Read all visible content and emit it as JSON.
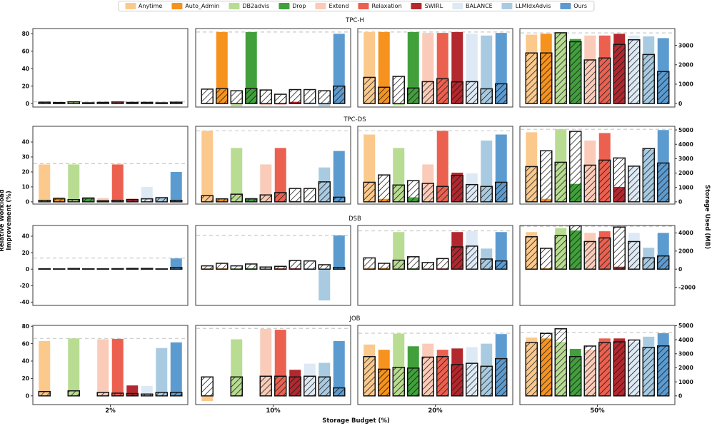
{
  "axes": {
    "left_label": "Relative Workload Improvement (%)",
    "right_label": "Storage Used (MB)",
    "bottom_label": "Storage Budget (%)"
  },
  "legend": {
    "items": [
      {
        "label": "Anytime",
        "color": "#FBC98C"
      },
      {
        "label": "Auto_Admin",
        "color": "#F6921E"
      },
      {
        "label": "DB2advis",
        "color": "#B8DC92"
      },
      {
        "label": "Drop",
        "color": "#41A03C"
      },
      {
        "label": "Extend",
        "color": "#FACBB8"
      },
      {
        "label": "Relaxation",
        "color": "#EC6050"
      },
      {
        "label": "SWIRL",
        "color": "#B2282E"
      },
      {
        "label": "BALANCE",
        "color": "#DDE9F4"
      },
      {
        "label": "LLMIdxAdvis",
        "color": "#A9CBE2"
      },
      {
        "label": "Ours",
        "color": "#5C9BD0"
      }
    ]
  },
  "chart_data": {
    "type": "bar",
    "title": "",
    "xlabel": "Storage Budget (%)",
    "ylabel_left": "Relative Workload Improvement (%)",
    "ylabel_right": "Storage Used (MB)",
    "budgets": [
      "2%",
      "10%",
      "20%",
      "50%"
    ],
    "series_names": [
      "Anytime",
      "Auto_Admin",
      "DB2advis",
      "Drop",
      "Extend",
      "Relaxation",
      "SWIRL",
      "BALANCE",
      "LLMIdxAdvis",
      "Ours"
    ],
    "note_bars": "each series has a solid bar = improvement % (left axis) and a black-hatched overlay bar = storage used MB (right axis); gray dashed line = reference improvement level",
    "rows": [
      {
        "title": "TPC-H",
        "left_ticks": [
          0,
          20,
          40,
          60,
          80
        ],
        "right_ticks": [
          0,
          1000,
          2000,
          3000
        ],
        "left_range": [
          -4,
          86
        ],
        "mb_per_pct": 45,
        "subplots": [
          {
            "budget": "2%",
            "dashed_pct": 2,
            "improvement_pct": [
              1.5,
              0.5,
              2.5,
              0.5,
              1.5,
              2,
              1.5,
              1.5,
              0.5,
              1.5
            ],
            "storage_mb": [
              70,
              50,
              90,
              40,
              60,
              80,
              60,
              60,
              40,
              70
            ]
          },
          {
            "budget": "10%",
            "dashed_pct": 82,
            "improvement_pct": [
              1,
              82,
              -3,
              82,
              -2,
              -1,
              2,
              2,
              -3,
              80
            ],
            "storage_mb": [
              745,
              770,
              660,
              780,
              700,
              480,
              720,
              720,
              660,
              900
            ]
          },
          {
            "budget": "20%",
            "dashed_pct": 82,
            "improvement_pct": [
              82,
              82,
              -2,
              82,
              81,
              81,
              82,
              80,
              78,
              81
            ],
            "storage_mb": [
              1350,
              840,
              1400,
              800,
              1130,
              1280,
              1120,
              1130,
              760,
              1020
            ]
          },
          {
            "budget": "50%",
            "dashed_pct": 81,
            "improvement_pct": [
              79,
              80,
              82,
              74,
              78,
              78,
              80,
              78,
              77,
              75
            ],
            "storage_mb": [
              2610,
              2610,
              3650,
              3190,
              2250,
              2350,
              3050,
              3290,
              2530,
              1650
            ]
          }
        ]
      },
      {
        "title": "TPC-DS",
        "left_ticks": [
          0,
          10,
          20,
          30,
          40
        ],
        "right_ticks": [
          0,
          1000,
          2000,
          3000,
          4000,
          5000
        ],
        "left_range": [
          -1.5,
          50.5
        ],
        "mb_per_pct": 104,
        "subplots": [
          {
            "budget": "2%",
            "dashed_pct": 25.5,
            "improvement_pct": [
              25,
              3,
              25,
              3,
              2.5,
              25,
              2,
              10,
              3,
              20
            ],
            "storage_mb": [
              105,
              210,
              155,
              260,
              75,
              105,
              155,
              210,
              290,
              105
            ]
          },
          {
            "budget": "10%",
            "dashed_pct": 47.5,
            "improvement_pct": [
              47.5,
              2,
              36,
              2.5,
              25,
              36,
              0.5,
              0.5,
              23,
              34
            ],
            "storage_mb": [
              430,
              210,
              530,
              210,
              480,
              640,
              930,
              930,
              1390,
              320
            ]
          },
          {
            "budget": "20%",
            "dashed_pct": 47.5,
            "improvement_pct": [
              45,
              2,
              36,
              3,
              25,
              47.5,
              19.5,
              19,
              41,
              45
            ],
            "storage_mb": [
              1360,
              1870,
              1170,
              1470,
              1280,
              1070,
              1840,
              1200,
              1070,
              1360
            ]
          },
          {
            "budget": "50%",
            "dashed_pct": 48.5,
            "improvement_pct": [
              46.5,
              2,
              48.5,
              12,
              41,
              46,
              10,
              24.5,
              35,
              48
            ],
            "storage_mb": [
              2450,
              3550,
              2750,
              4900,
              2550,
              2900,
              3050,
              2480,
              3700,
              2700
            ]
          }
        ]
      },
      {
        "title": "DSB",
        "left_ticks": [
          -40,
          -20,
          0,
          20,
          40
        ],
        "right_ticks": [
          -2000,
          0,
          2000,
          4000
        ],
        "left_range": [
          -44,
          53
        ],
        "mb_per_pct": 91,
        "subplots": [
          {
            "budget": "2%",
            "dashed_pct": 13.5,
            "improvement_pct": [
              0.5,
              0.5,
              1.5,
              0.5,
              0.5,
              1,
              1.5,
              1.5,
              0.5,
              13
            ],
            "storage_mb": [
              45,
              30,
              70,
              35,
              35,
              55,
              80,
              80,
              30,
              180
            ]
          },
          {
            "budget": "10%",
            "dashed_pct": 41,
            "improvement_pct": [
              1,
              1,
              1,
              1,
              0.5,
              1,
              1,
              1,
              -38,
              41
            ],
            "storage_mb": [
              365,
              645,
              365,
              570,
              235,
              310,
              960,
              910,
              490,
              180
            ]
          },
          {
            "budget": "20%",
            "dashed_pct": 46.5,
            "improvement_pct": [
              2,
              1.5,
              45,
              1,
              1,
              1,
              45,
              46,
              25,
              45
            ],
            "storage_mb": [
              1245,
              645,
              990,
              1370,
              730,
              1170,
              2460,
              2545,
              1120,
              910
            ]
          },
          {
            "budget": "50%",
            "dashed_pct": 52,
            "improvement_pct": [
              45,
              1,
              50,
              47,
              44,
              46,
              3,
              44,
              26,
              44
            ],
            "storage_mb": [
              3580,
              2300,
              3700,
              4800,
              3050,
              3450,
              4650,
              3050,
              1250,
              1460
            ]
          }
        ]
      },
      {
        "title": "JOB",
        "left_ticks": [
          0,
          20,
          40,
          60,
          80
        ],
        "right_ticks": [
          0,
          1000,
          2000,
          3000,
          4000,
          5000
        ],
        "left_range": [
          -10,
          81
        ],
        "mb_per_pct": 62,
        "subplots": [
          {
            "budget": "2%",
            "dashed_pct": 66,
            "improvement_pct": [
              63,
              0,
              66,
              0,
              65,
              65.5,
              12,
              11.5,
              55,
              61.5
            ],
            "storage_mb": [
              310,
              0,
              360,
              0,
              245,
              195,
              165,
              130,
              245,
              245
            ]
          },
          {
            "budget": "10%",
            "dashed_pct": 77.5,
            "improvement_pct": [
              -6,
              0,
              65,
              0,
              77,
              76,
              30,
              37,
              38,
              63
            ],
            "storage_mb": [
              1350,
              0,
              1350,
              0,
              1400,
              1400,
              1350,
              1400,
              1350,
              570
            ]
          },
          {
            "budget": "20%",
            "dashed_pct": 72,
            "improvement_pct": [
              59,
              53,
              71.5,
              57,
              60,
              53,
              54.5,
              56,
              60,
              71
            ],
            "storage_mb": [
              2800,
              1900,
              2030,
              1980,
              2760,
              2800,
              2230,
              2320,
              2110,
              2650
            ]
          },
          {
            "budget": "50%",
            "dashed_pct": 73,
            "improvement_pct": [
              67,
              66,
              62,
              54,
              53,
              66,
              66,
              62,
              68,
              72
            ],
            "storage_mb": [
              3800,
              4450,
              4780,
              2800,
              3550,
              3800,
              3850,
              3980,
              3450,
              3560
            ]
          }
        ]
      }
    ]
  }
}
